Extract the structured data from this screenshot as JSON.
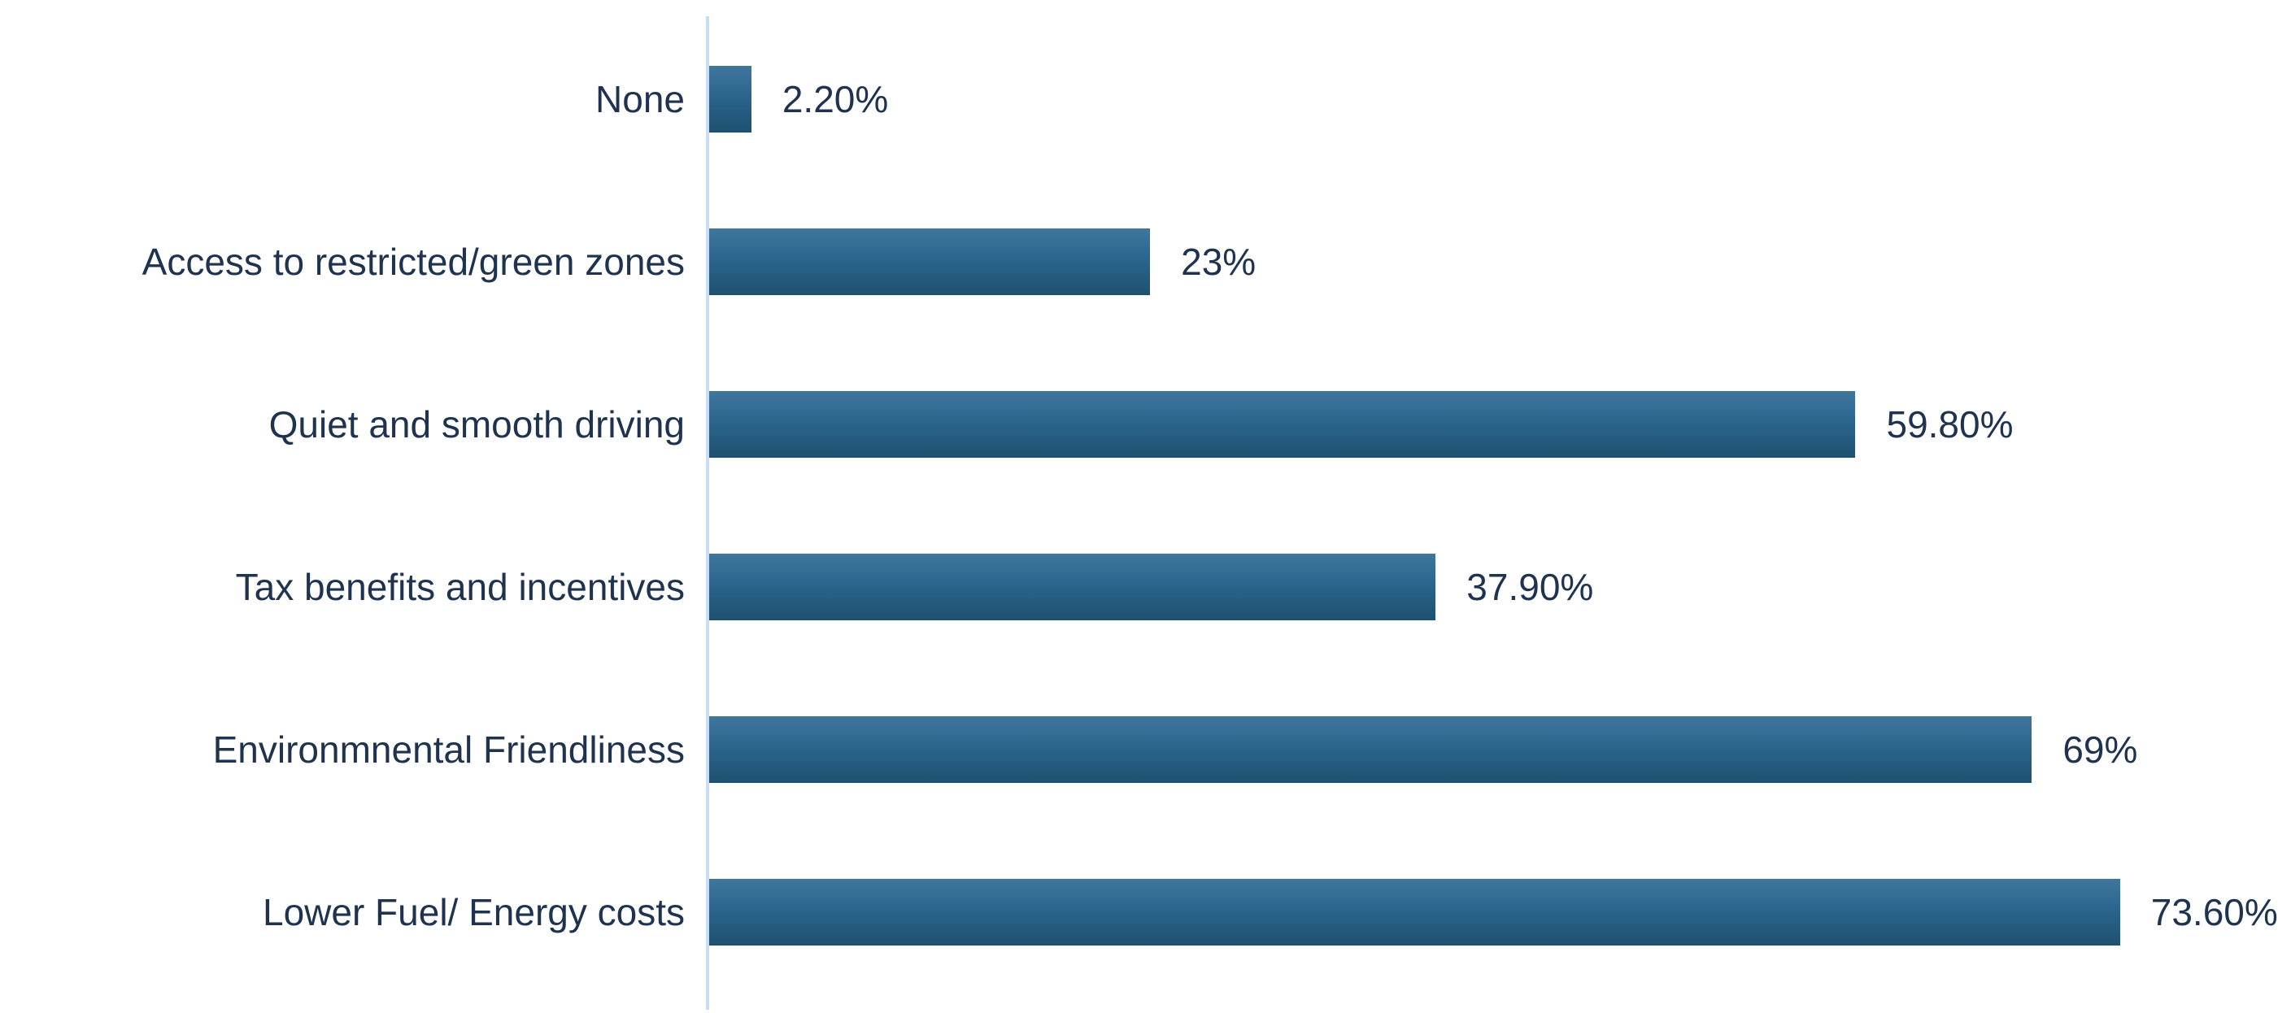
{
  "chart_data": {
    "type": "bar",
    "orientation": "horizontal",
    "title": "",
    "xlabel": "",
    "ylabel": "",
    "grid": false,
    "legend": false,
    "xlim": [
      0,
      80
    ],
    "categories": [
      "None",
      "Access to restricted/green zones",
      "Quiet and smooth driving",
      "Tax benefits and incentives",
      "Environmnental Friendliness",
      "Lower Fuel/ Energy costs"
    ],
    "values": [
      2.2,
      23,
      59.8,
      37.9,
      69,
      73.6
    ],
    "value_labels": [
      "2.20%",
      "23%",
      "59.80%",
      "37.90%",
      "69%",
      "73.60%"
    ],
    "colors": {
      "bar_gradient_top": "#3f769e",
      "bar_gradient_bottom": "#1f506f",
      "axis_line": "#c9ddf4",
      "text": "#1f3350",
      "background": "#ffffff"
    }
  }
}
